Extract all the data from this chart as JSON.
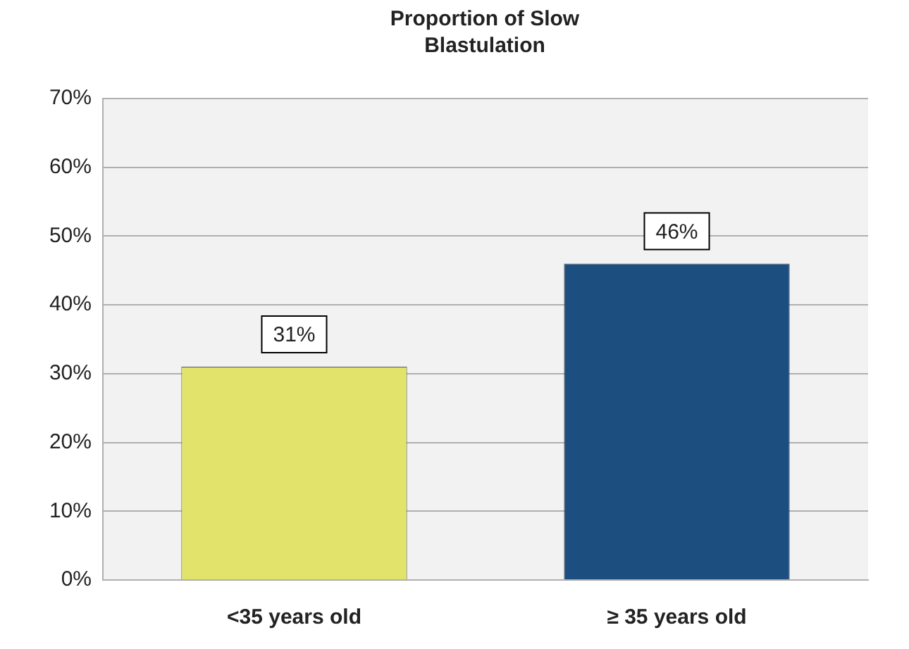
{
  "chart_data": {
    "type": "bar",
    "title": "Proportion of Slow Blastulation",
    "categories": [
      "<35 years old",
      "≥ 35 years old"
    ],
    "values": [
      31,
      46
    ],
    "colors": [
      "#e1e36b",
      "#1c4e80"
    ],
    "ylim": [
      0,
      70
    ],
    "yticks": [
      {
        "value": 0,
        "label": "0%"
      },
      {
        "value": 10,
        "label": "10%"
      },
      {
        "value": 20,
        "label": "20%"
      },
      {
        "value": 30,
        "label": "30%"
      },
      {
        "value": 40,
        "label": "40%"
      },
      {
        "value": 50,
        "label": "50%"
      },
      {
        "value": 60,
        "label": "60%"
      },
      {
        "value": 70,
        "label": "70%"
      }
    ],
    "grid": "y",
    "legend": false,
    "value_labels": [
      "31%",
      "46%"
    ]
  }
}
